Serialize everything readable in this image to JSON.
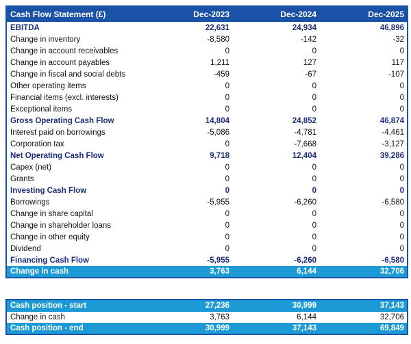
{
  "colors": {
    "header_bg": "#1952A7",
    "table_border": "#1952A7",
    "section_text": "#1B2C7C",
    "highlight_bg": "#1D9AD5",
    "highlight_text": "#FFFFFF",
    "row_separator": "#D8D8D8",
    "body_text": "#111111"
  },
  "chart_data": {
    "type": "table",
    "title": "Cash Flow Statement (£)",
    "columns": [
      "Dec-2023",
      "Dec-2024",
      "Dec-2025"
    ],
    "rows": [
      {
        "label": "EBITDA",
        "values": [
          "22,631",
          "24,934",
          "46,896"
        ],
        "style": "section"
      },
      {
        "label": "Change in inventory",
        "values": [
          "-8,580",
          "-142",
          "-32"
        ],
        "style": "normal"
      },
      {
        "label": "Change in account receivables",
        "values": [
          "0",
          "0",
          "0"
        ],
        "style": "normal"
      },
      {
        "label": "Change in account payables",
        "values": [
          "1,211",
          "127",
          "117"
        ],
        "style": "normal"
      },
      {
        "label": "Change in fiscal and social debts",
        "values": [
          "-459",
          "-67",
          "-107"
        ],
        "style": "normal"
      },
      {
        "label": "Other operating items",
        "values": [
          "0",
          "0",
          "0"
        ],
        "style": "normal"
      },
      {
        "label": "Financial items (excl. interests)",
        "values": [
          "0",
          "0",
          "0"
        ],
        "style": "normal"
      },
      {
        "label": "Exceptional items",
        "values": [
          "0",
          "0",
          "0"
        ],
        "style": "normal"
      },
      {
        "label": "Gross Operating Cash Flow",
        "values": [
          "14,804",
          "24,852",
          "46,874"
        ],
        "style": "section"
      },
      {
        "label": "Interest paid on borrowings",
        "values": [
          "-5,086",
          "-4,781",
          "-4,461"
        ],
        "style": "normal"
      },
      {
        "label": "Corporation tax",
        "values": [
          "0",
          "-7,668",
          "-3,127"
        ],
        "style": "normal"
      },
      {
        "label": "Net Operating Cash Flow",
        "values": [
          "9,718",
          "12,404",
          "39,286"
        ],
        "style": "section"
      },
      {
        "label": "Capex (net)",
        "values": [
          "0",
          "0",
          "0"
        ],
        "style": "normal"
      },
      {
        "label": "Grants",
        "values": [
          "0",
          "0",
          "0"
        ],
        "style": "normal"
      },
      {
        "label": "Investing Cash Flow",
        "values": [
          "0",
          "0",
          "0"
        ],
        "style": "section"
      },
      {
        "label": "Borrowings",
        "values": [
          "-5,955",
          "-6,260",
          "-6,580"
        ],
        "style": "normal"
      },
      {
        "label": "Change in share capital",
        "values": [
          "0",
          "0",
          "0"
        ],
        "style": "normal"
      },
      {
        "label": "Change in shareholder loans",
        "values": [
          "0",
          "0",
          "0"
        ],
        "style": "normal"
      },
      {
        "label": "Change in other equity",
        "values": [
          "0",
          "0",
          "0"
        ],
        "style": "normal"
      },
      {
        "label": "Dividend",
        "values": [
          "0",
          "0",
          "0"
        ],
        "style": "normal"
      },
      {
        "label": "Financing Cash Flow",
        "values": [
          "-5,955",
          "-6,260",
          "-6,580"
        ],
        "style": "section"
      },
      {
        "label": "Change in cash",
        "values": [
          "3,763",
          "6,144",
          "32,706"
        ],
        "style": "highlight"
      }
    ],
    "summary_rows": [
      {
        "label": "Cash position - start",
        "values": [
          "27,236",
          "30,999",
          "37,143"
        ],
        "style": "highlight"
      },
      {
        "label": "Change in cash",
        "values": [
          "3,763",
          "6,144",
          "32,706"
        ],
        "style": "normal"
      },
      {
        "label": "Cash position - end",
        "values": [
          "30,999",
          "37,143",
          "69,849"
        ],
        "style": "highlight"
      }
    ]
  }
}
